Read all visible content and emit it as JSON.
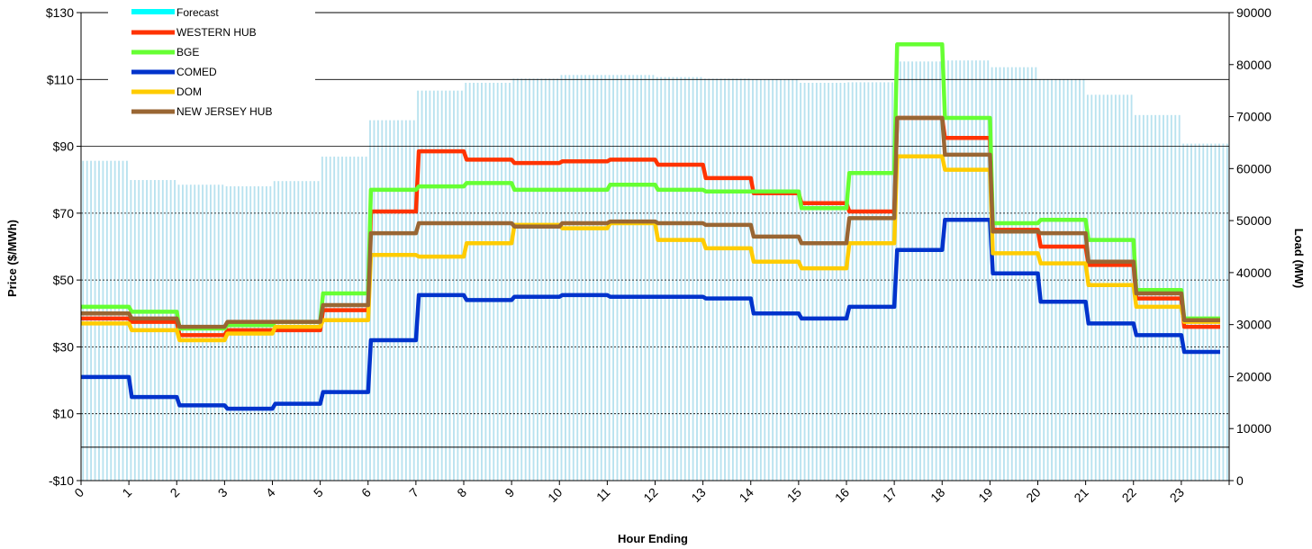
{
  "chart_data": {
    "type": "line",
    "xlabel": "Hour Ending",
    "ylabel": "Price ($/MWh)",
    "y2label": "Load (MW)",
    "x_ticks": [
      "0",
      "1",
      "2",
      "3",
      "4",
      "5",
      "6",
      "7",
      "8",
      "9",
      "10",
      "11",
      "12",
      "13",
      "14",
      "15",
      "16",
      "17",
      "18",
      "19",
      "20",
      "21",
      "22",
      "23"
    ],
    "y_ticks": [
      "$130",
      "$110",
      "$90",
      "$70",
      "$50",
      "$30",
      "$10",
      "-$10"
    ],
    "y_tick_values": [
      130,
      110,
      90,
      70,
      50,
      30,
      10,
      -10
    ],
    "y2_ticks": [
      "90000",
      "80000",
      "70000",
      "60000",
      "50000",
      "40000",
      "30000",
      "20000",
      "10000",
      "0"
    ],
    "y2_tick_values": [
      90000,
      80000,
      70000,
      60000,
      50000,
      40000,
      30000,
      20000,
      10000,
      0
    ],
    "ylim": [
      -10,
      130
    ],
    "y2lim": [
      0,
      90000
    ],
    "x_range": [
      0,
      24
    ],
    "grid": "horizontal",
    "legend_position": "top-left",
    "forecast": {
      "name": "Forecast",
      "color": "#00FFFF",
      "values": [
        61500,
        57800,
        56900,
        56600,
        57600,
        62300,
        69300,
        75000,
        76500,
        77300,
        78000,
        78000,
        77600,
        77300,
        77100,
        76500,
        76600,
        80600,
        80800,
        79500,
        77200,
        74200,
        70300,
        64800
      ]
    },
    "series": [
      {
        "name": "WESTERN HUB",
        "color": "#FF3300",
        "values": [
          38.5,
          37.5,
          33.5,
          35,
          35,
          41,
          70.5,
          88.5,
          86,
          85,
          85.5,
          86,
          84.5,
          80.5,
          76,
          73,
          70.5,
          98.5,
          92.5,
          65,
          60,
          54.5,
          44.5,
          36
        ]
      },
      {
        "name": "BGE",
        "color": "#66FF33",
        "values": [
          42,
          40.5,
          35.5,
          36.5,
          37.5,
          46,
          77,
          78,
          79,
          77,
          77,
          78.5,
          77,
          76.5,
          76.5,
          71.5,
          82,
          120.5,
          98.5,
          67,
          68,
          62,
          47,
          38.5
        ]
      },
      {
        "name": "COMED",
        "color": "#0033CC",
        "values": [
          21,
          15,
          12.5,
          11.5,
          13,
          16.5,
          32,
          45.5,
          44,
          45,
          45.5,
          45,
          45,
          44.5,
          40,
          38.5,
          42,
          59,
          68,
          52,
          43.5,
          37,
          33.5,
          28.5
        ]
      },
      {
        "name": "DOM",
        "color": "#FFCC00",
        "values": [
          37,
          35,
          32,
          34,
          36,
          38,
          57.5,
          57,
          61,
          66.5,
          65.5,
          67,
          62,
          59.5,
          55.5,
          53.5,
          61,
          87,
          83,
          58,
          55,
          48.5,
          42,
          37.5
        ]
      },
      {
        "name": "NEW JERSEY HUB",
        "color": "#996633",
        "values": [
          40,
          38.5,
          36,
          37.5,
          37.5,
          42.5,
          64,
          67,
          67,
          66,
          67,
          67.5,
          67,
          66.5,
          63,
          61,
          68.5,
          98.5,
          87.5,
          64.5,
          64,
          55.5,
          46,
          38
        ]
      }
    ]
  }
}
